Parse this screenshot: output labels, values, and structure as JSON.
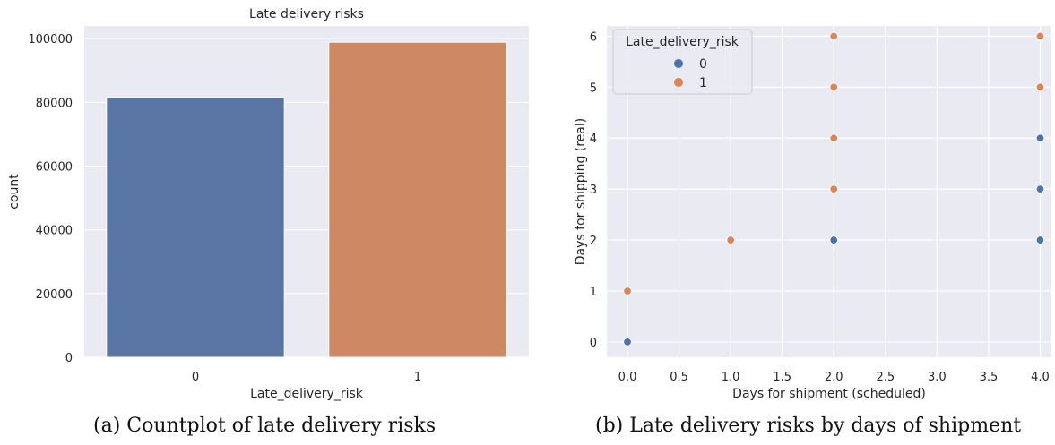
{
  "chart_data": [
    {
      "type": "bar",
      "title": "Late delivery risks",
      "xlabel": "Late_delivery_risk",
      "ylabel": "count",
      "categories": [
        "0",
        "1"
      ],
      "values": [
        81500,
        98900
      ],
      "colors": [
        "#5975a4",
        "#cc8963"
      ],
      "ylim": [
        0,
        104000
      ],
      "yticks": [
        0,
        20000,
        40000,
        60000,
        80000,
        100000
      ],
      "grid": true,
      "caption": "(a) Countplot of late delivery risks"
    },
    {
      "type": "scatter",
      "title": "",
      "xlabel": "Days for shipment (scheduled)",
      "ylabel": "Days for shipping (real)",
      "xlim": [
        -0.2,
        4.1
      ],
      "ylim": [
        -0.3,
        6.2
      ],
      "xticks": [
        "0.0",
        "0.5",
        "1.0",
        "1.5",
        "2.0",
        "2.5",
        "3.0",
        "3.5",
        "4.0"
      ],
      "yticks": [
        "0",
        "1",
        "2",
        "3",
        "4",
        "5",
        "6"
      ],
      "legend": {
        "title": "Late_delivery_risk",
        "placement": "top-left"
      },
      "series": [
        {
          "name": "0",
          "color": "#4c72b0",
          "points": [
            [
              0,
              0
            ],
            [
              2,
              2
            ],
            [
              4,
              2
            ],
            [
              4,
              3
            ],
            [
              4,
              4
            ]
          ]
        },
        {
          "name": "1",
          "color": "#dd8452",
          "points": [
            [
              0,
              1
            ],
            [
              1,
              2
            ],
            [
              2,
              3
            ],
            [
              2,
              4
            ],
            [
              2,
              5
            ],
            [
              2,
              6
            ],
            [
              4,
              5
            ],
            [
              4,
              6
            ]
          ]
        }
      ],
      "grid": true,
      "caption": "(b) Late delivery risks by days of shipment"
    }
  ]
}
